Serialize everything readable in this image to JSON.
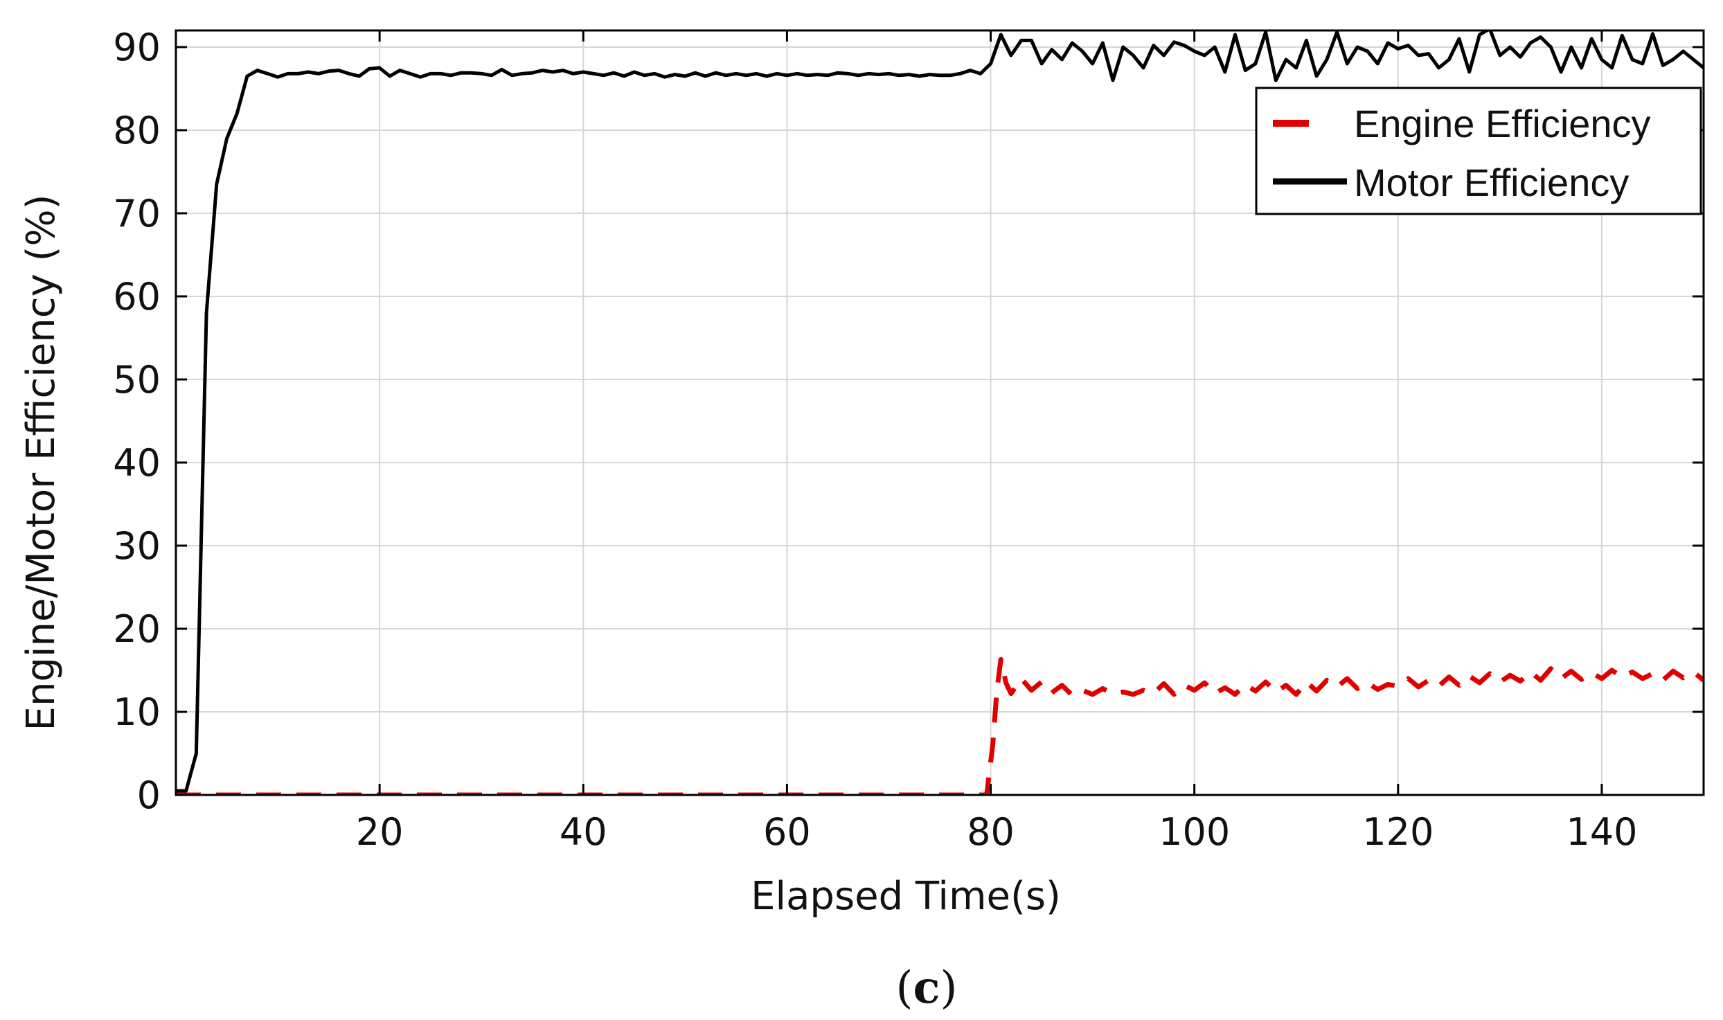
{
  "chart_data": {
    "type": "line",
    "title": "",
    "xlabel": "Elapsed Time(s)",
    "ylabel": "Engine/Motor  Efficiency (%)",
    "xlim": [
      0,
      150
    ],
    "ylim": [
      0,
      92
    ],
    "x_ticks": [
      20,
      40,
      60,
      80,
      100,
      120,
      140
    ],
    "y_ticks": [
      0,
      10,
      20,
      30,
      40,
      50,
      60,
      70,
      80,
      90
    ],
    "grid": true,
    "legend_position": "top-right",
    "caption": {
      "open": "(",
      "letter": "c",
      "close": ")"
    },
    "series": [
      {
        "name": "Engine Efficiency",
        "color": "#e00000",
        "style": "dashed",
        "points": [
          [
            0,
            0
          ],
          [
            20,
            0
          ],
          [
            40,
            0
          ],
          [
            60,
            0
          ],
          [
            79.6,
            0
          ],
          [
            80.2,
            6
          ],
          [
            80.6,
            12.5
          ],
          [
            81,
            16.3
          ],
          [
            81.5,
            13.5
          ],
          [
            82,
            12.2
          ],
          [
            83,
            14
          ],
          [
            84,
            12.6
          ],
          [
            85,
            13.6
          ],
          [
            86,
            12.3
          ],
          [
            87,
            13.2
          ],
          [
            88,
            12
          ],
          [
            89,
            12.6
          ],
          [
            90,
            12.1
          ],
          [
            91,
            12.8
          ],
          [
            92,
            12.2
          ],
          [
            93,
            12.4
          ],
          [
            94,
            12.1
          ],
          [
            95,
            12.6
          ],
          [
            96,
            12.2
          ],
          [
            97,
            13.4
          ],
          [
            98,
            12.1
          ],
          [
            99,
            13.2
          ],
          [
            100,
            12.6
          ],
          [
            101,
            13.5
          ],
          [
            102,
            12.2
          ],
          [
            103,
            12.9
          ],
          [
            104,
            12.1
          ],
          [
            105,
            13.3
          ],
          [
            106,
            12.5
          ],
          [
            107,
            13.6
          ],
          [
            108,
            12.4
          ],
          [
            109,
            13.2
          ],
          [
            110,
            12.1
          ],
          [
            111,
            13.6
          ],
          [
            112,
            12.5
          ],
          [
            113,
            13.8
          ],
          [
            114,
            13
          ],
          [
            115,
            14
          ],
          [
            116,
            12.8
          ],
          [
            117,
            13.5
          ],
          [
            118,
            12.7
          ],
          [
            119,
            13.3
          ],
          [
            120,
            13.1
          ],
          [
            121,
            14
          ],
          [
            122,
            13
          ],
          [
            123,
            13.8
          ],
          [
            124,
            13.1
          ],
          [
            125,
            14.2
          ],
          [
            126,
            13.2
          ],
          [
            127,
            14.3
          ],
          [
            128,
            13.5
          ],
          [
            129,
            14.6
          ],
          [
            130,
            13.6
          ],
          [
            131,
            14.4
          ],
          [
            132,
            13.7
          ],
          [
            133,
            14.8
          ],
          [
            134,
            13.8
          ],
          [
            135,
            15.2
          ],
          [
            136,
            14
          ],
          [
            137,
            14.9
          ],
          [
            138,
            13.9
          ],
          [
            139,
            14.7
          ],
          [
            140,
            14
          ],
          [
            141,
            15
          ],
          [
            142,
            14.2
          ],
          [
            143,
            14.8
          ],
          [
            144,
            14
          ],
          [
            145,
            14.6
          ],
          [
            146,
            13.8
          ],
          [
            147,
            14.9
          ],
          [
            148,
            14.1
          ],
          [
            149,
            14.8
          ],
          [
            150,
            13.8
          ]
        ]
      },
      {
        "name": "Motor Efficiency",
        "color": "#000000",
        "style": "solid",
        "points": [
          [
            0,
            0.5
          ],
          [
            1,
            0.5
          ],
          [
            2,
            5
          ],
          [
            3,
            58
          ],
          [
            4,
            73.5
          ],
          [
            5,
            79
          ],
          [
            6,
            82
          ],
          [
            7,
            86.5
          ],
          [
            8,
            87.2
          ],
          [
            9,
            86.8
          ],
          [
            10,
            86.4
          ],
          [
            11,
            86.8
          ],
          [
            12,
            86.8
          ],
          [
            13,
            87
          ],
          [
            14,
            86.8
          ],
          [
            15,
            87.1
          ],
          [
            16,
            87.2
          ],
          [
            17,
            86.8
          ],
          [
            18,
            86.5
          ],
          [
            19,
            87.4
          ],
          [
            20,
            87.5
          ],
          [
            21,
            86.5
          ],
          [
            22,
            87.2
          ],
          [
            23,
            86.8
          ],
          [
            24,
            86.4
          ],
          [
            25,
            86.8
          ],
          [
            26,
            86.8
          ],
          [
            27,
            86.6
          ],
          [
            28,
            86.9
          ],
          [
            29,
            86.9
          ],
          [
            30,
            86.8
          ],
          [
            31,
            86.6
          ],
          [
            32,
            87.3
          ],
          [
            33,
            86.6
          ],
          [
            34,
            86.8
          ],
          [
            35,
            86.9
          ],
          [
            36,
            87.2
          ],
          [
            37,
            87
          ],
          [
            38,
            87.2
          ],
          [
            39,
            86.8
          ],
          [
            40,
            87
          ],
          [
            41,
            86.8
          ],
          [
            42,
            86.6
          ],
          [
            43,
            86.9
          ],
          [
            44,
            86.5
          ],
          [
            45,
            87
          ],
          [
            46,
            86.6
          ],
          [
            47,
            86.8
          ],
          [
            48,
            86.4
          ],
          [
            49,
            86.7
          ],
          [
            50,
            86.5
          ],
          [
            51,
            86.9
          ],
          [
            52,
            86.5
          ],
          [
            53,
            86.9
          ],
          [
            54,
            86.6
          ],
          [
            55,
            86.8
          ],
          [
            56,
            86.6
          ],
          [
            57,
            86.8
          ],
          [
            58,
            86.5
          ],
          [
            59,
            86.8
          ],
          [
            60,
            86.6
          ],
          [
            61,
            86.8
          ],
          [
            62,
            86.6
          ],
          [
            63,
            86.7
          ],
          [
            64,
            86.6
          ],
          [
            65,
            86.9
          ],
          [
            66,
            86.8
          ],
          [
            67,
            86.6
          ],
          [
            68,
            86.8
          ],
          [
            69,
            86.7
          ],
          [
            70,
            86.8
          ],
          [
            71,
            86.6
          ],
          [
            72,
            86.7
          ],
          [
            73,
            86.5
          ],
          [
            74,
            86.7
          ],
          [
            75,
            86.6
          ],
          [
            76,
            86.6
          ],
          [
            77,
            86.8
          ],
          [
            78,
            87.2
          ],
          [
            79,
            86.8
          ],
          [
            80,
            88
          ],
          [
            81,
            91.5
          ],
          [
            82,
            89
          ],
          [
            83,
            90.8
          ],
          [
            84,
            90.8
          ],
          [
            85,
            88
          ],
          [
            86,
            89.7
          ],
          [
            87,
            88.5
          ],
          [
            88,
            90.5
          ],
          [
            89,
            89.5
          ],
          [
            90,
            88
          ],
          [
            91,
            90.5
          ],
          [
            92,
            86
          ],
          [
            93,
            90
          ],
          [
            94,
            89
          ],
          [
            95,
            87.5
          ],
          [
            96,
            90.2
          ],
          [
            97,
            89
          ],
          [
            98,
            90.6
          ],
          [
            99,
            90.2
          ],
          [
            100,
            89.5
          ],
          [
            101,
            89
          ],
          [
            102,
            90
          ],
          [
            103,
            87
          ],
          [
            104,
            91.5
          ],
          [
            105,
            87.2
          ],
          [
            106,
            88
          ],
          [
            107,
            91.8
          ],
          [
            108,
            86
          ],
          [
            109,
            88.5
          ],
          [
            110,
            87.5
          ],
          [
            111,
            90.8
          ],
          [
            112,
            86.5
          ],
          [
            113,
            88.5
          ],
          [
            114,
            91.8
          ],
          [
            115,
            88
          ],
          [
            116,
            90
          ],
          [
            117,
            89.5
          ],
          [
            118,
            88
          ],
          [
            119,
            90.5
          ],
          [
            120,
            89.8
          ],
          [
            121,
            90.2
          ],
          [
            122,
            89
          ],
          [
            123,
            89.2
          ],
          [
            124,
            87.5
          ],
          [
            125,
            88.5
          ],
          [
            126,
            91
          ],
          [
            127,
            87
          ],
          [
            128,
            91.5
          ],
          [
            129,
            92.2
          ],
          [
            130,
            89
          ],
          [
            131,
            90
          ],
          [
            132,
            88.8
          ],
          [
            133,
            90.5
          ],
          [
            134,
            91.2
          ],
          [
            135,
            90
          ],
          [
            136,
            87
          ],
          [
            137,
            90
          ],
          [
            138,
            87.5
          ],
          [
            139,
            91
          ],
          [
            140,
            88.5
          ],
          [
            141,
            87.5
          ],
          [
            142,
            91.4
          ],
          [
            143,
            88.5
          ],
          [
            144,
            88
          ],
          [
            145,
            91.6
          ],
          [
            146,
            87.8
          ],
          [
            147,
            88.5
          ],
          [
            148,
            89.5
          ],
          [
            149,
            88.5
          ],
          [
            150,
            87.5
          ]
        ]
      }
    ]
  }
}
